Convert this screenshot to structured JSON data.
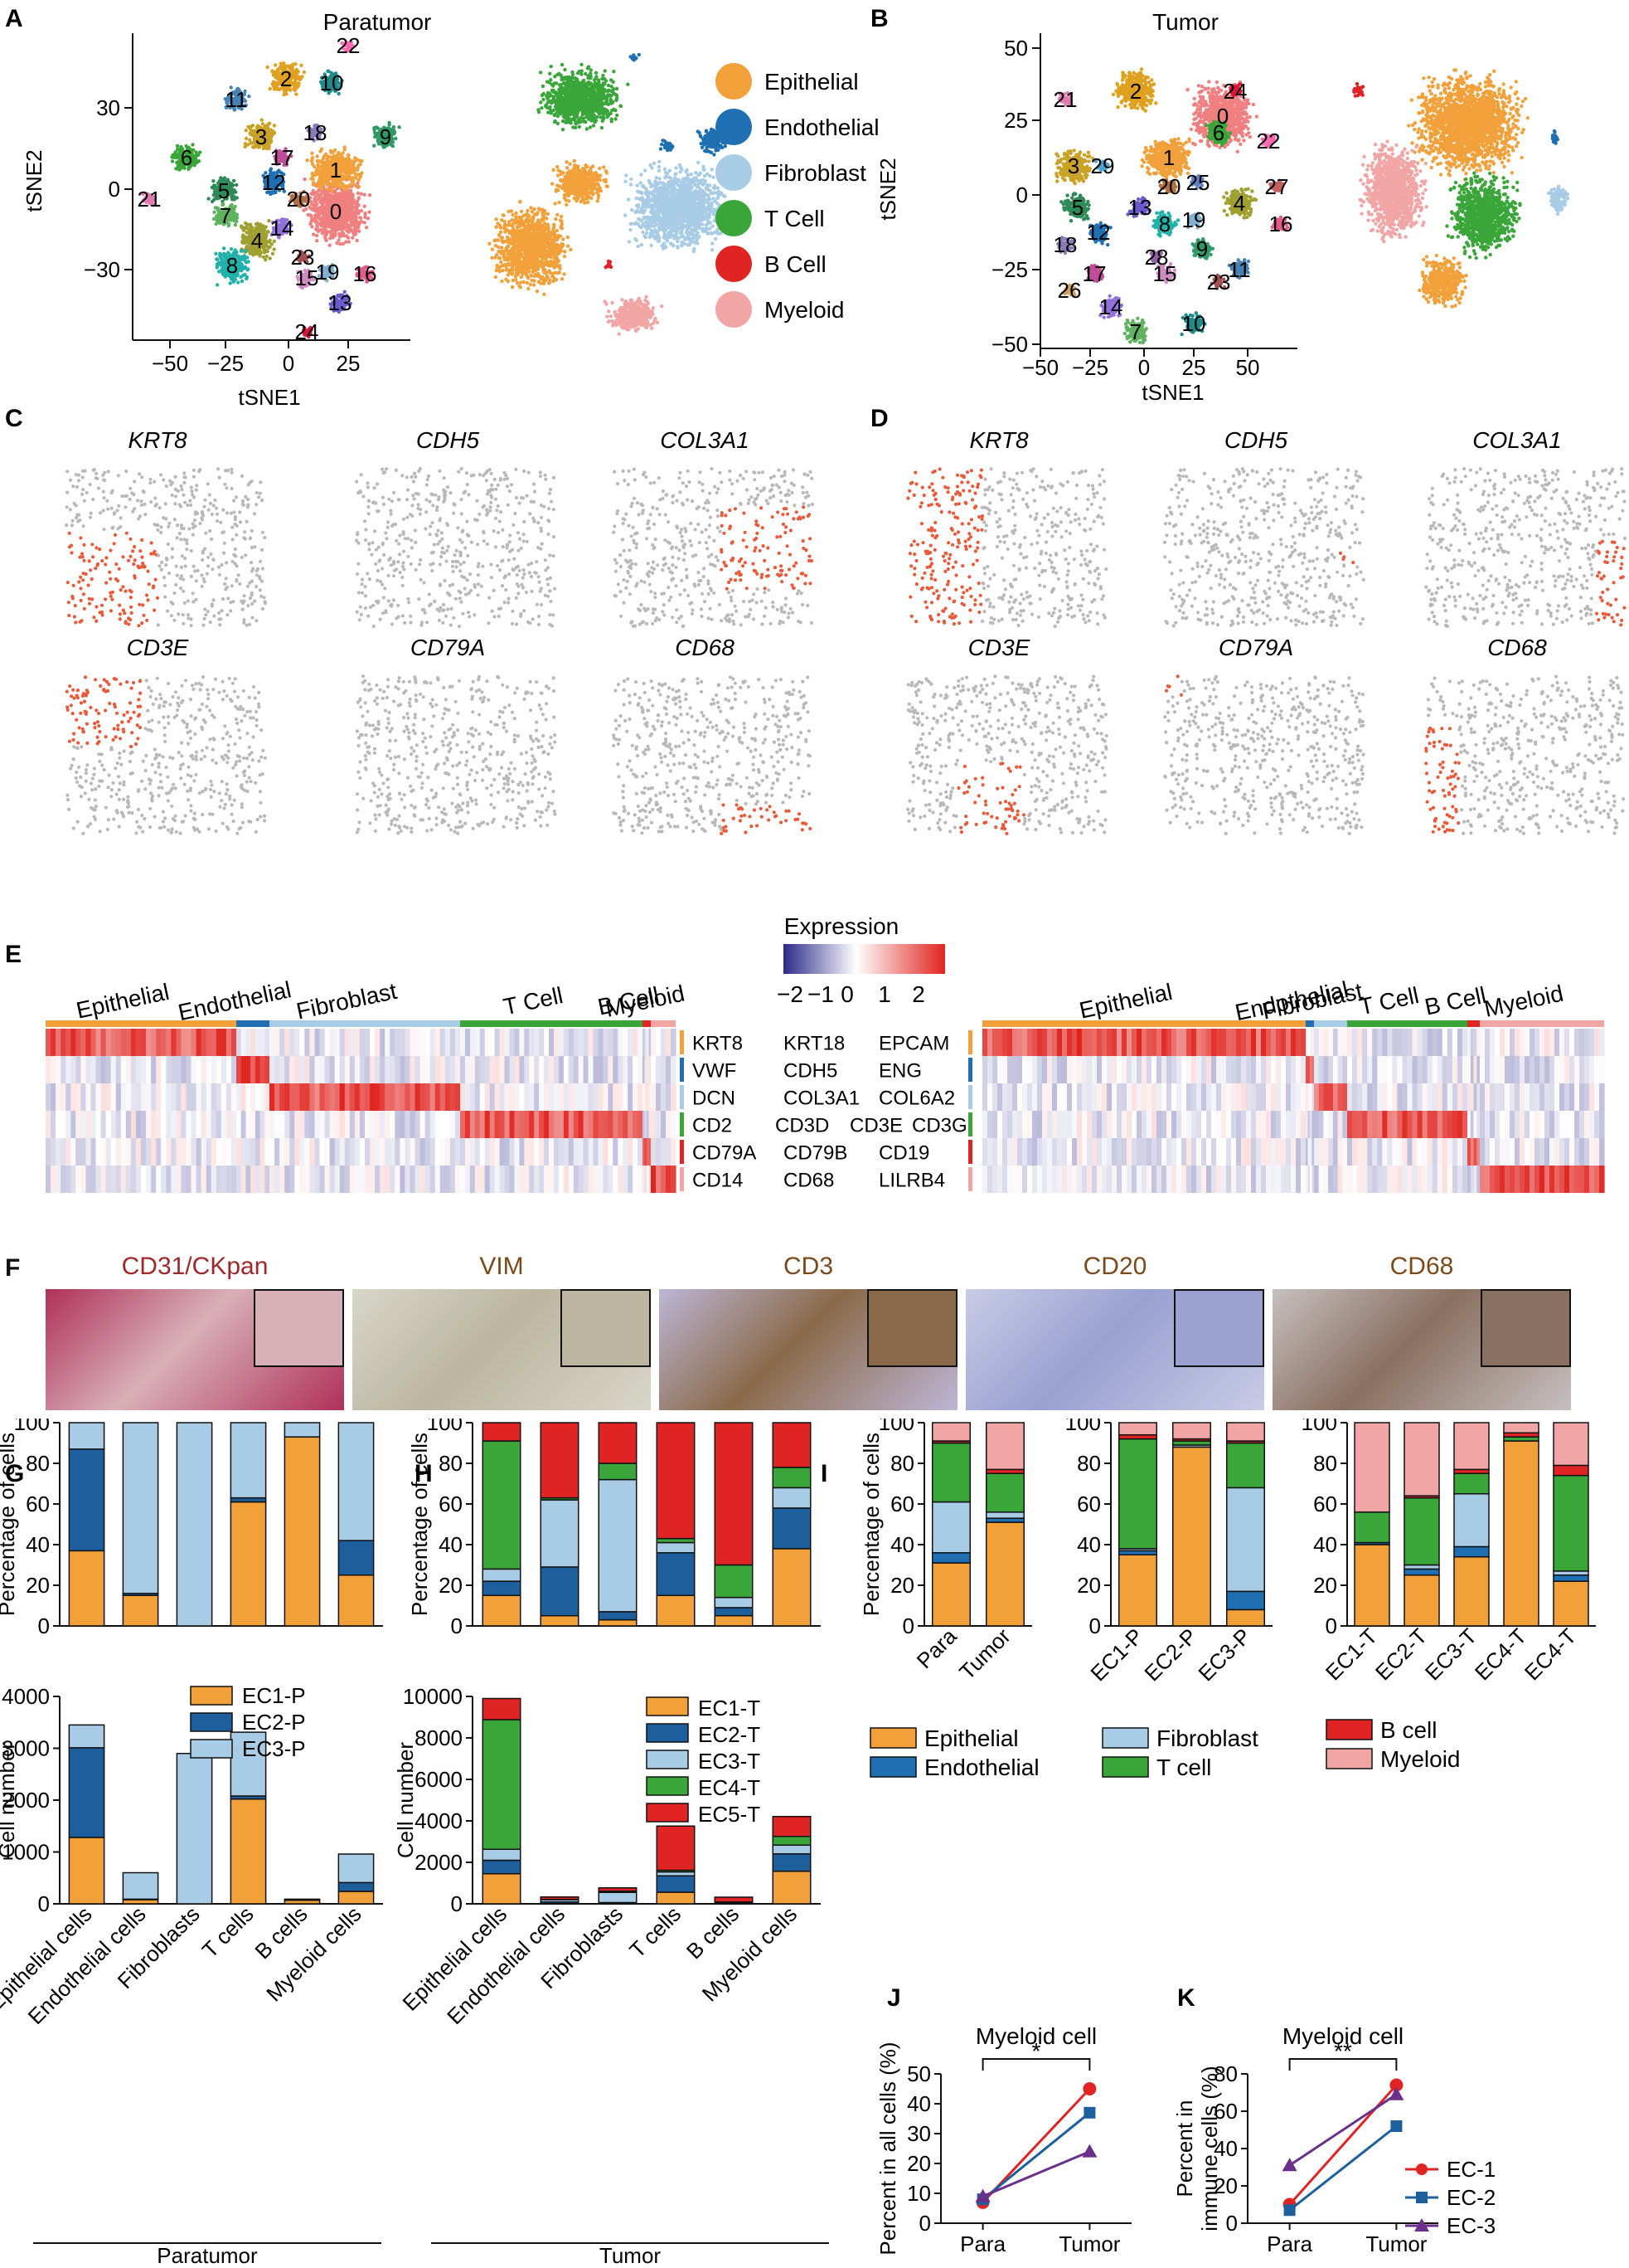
{
  "panels": {
    "A": {
      "letter": "A",
      "title": "Paratumor",
      "xlabel": "tSNE1",
      "ylabel": "tSNE2",
      "xticks": [
        "−50",
        "−25",
        "0",
        "25"
      ],
      "yticks": [
        "30",
        "0",
        "−30"
      ],
      "clusters": [
        "0",
        "1",
        "2",
        "3",
        "4",
        "5",
        "6",
        "7",
        "8",
        "9",
        "10",
        "11",
        "12",
        "13",
        "14",
        "15",
        "16",
        "17",
        "18",
        "19",
        "20",
        "21",
        "22",
        "23",
        "24"
      ]
    },
    "B": {
      "letter": "B",
      "title": "Tumor",
      "xlabel": "tSNE1",
      "ylabel": "tSNE2",
      "xticks": [
        "−50",
        "−25",
        "0",
        "25",
        "50"
      ],
      "yticks": [
        "50",
        "25",
        "0",
        "−25",
        "−50"
      ],
      "clusters": [
        "0",
        "1",
        "2",
        "3",
        "4",
        "5",
        "6",
        "7",
        "8",
        "9",
        "10",
        "11",
        "12",
        "13",
        "14",
        "15",
        "16",
        "17",
        "18",
        "19",
        "20",
        "21",
        "22",
        "23",
        "24",
        "25",
        "26",
        "27",
        "28",
        "29"
      ]
    },
    "C": {
      "letter": "C",
      "genes": [
        "KRT8",
        "CDH5",
        "COL3A1",
        "CD3E",
        "CD79A",
        "CD68"
      ]
    },
    "D": {
      "letter": "D",
      "genes": [
        "KRT8",
        "CDH5",
        "COL3A1",
        "CD3E",
        "CD79A",
        "CD68"
      ]
    },
    "E": {
      "letter": "E",
      "expression_label": "Expression",
      "scale_ticks": [
        "−2",
        "−1",
        "0",
        "1",
        "2"
      ],
      "groups": [
        "Epithelial",
        "Endothelial",
        "Fibroblast",
        "T Cell",
        "B Cell",
        "Myeloid"
      ],
      "marker_rows": [
        [
          "KRT8",
          "KRT18",
          "EPCAM"
        ],
        [
          "VWF",
          "CDH5",
          "ENG"
        ],
        [
          "DCN",
          "COL3A1",
          "COL6A2"
        ],
        [
          "CD2",
          "CD3D",
          "CD3E",
          "CD3G"
        ],
        [
          "CD79A",
          "CD79B",
          "CD19"
        ],
        [
          "CD14",
          "CD68",
          "LILRB4"
        ]
      ]
    },
    "F": {
      "letter": "F",
      "stains": [
        "CD31/CKpan",
        "VIM",
        "CD3",
        "CD20",
        "CD68"
      ]
    },
    "G": {
      "letter": "G",
      "group_label": "Paratumor"
    },
    "H": {
      "letter": "H",
      "group_label": "Tumor"
    },
    "I": {
      "letter": "I"
    },
    "J": {
      "letter": "J",
      "title": "Myeloid cell",
      "ylabel": "Percent in all cells (%)",
      "sig": "*"
    },
    "K": {
      "letter": "K",
      "title": "Myeloid cell",
      "ylabel_line1": "Percent in",
      "ylabel_line2": "immune cells (%)",
      "sig": "**"
    }
  },
  "celltype_legend": [
    "Epithelial",
    "Endothelial",
    "Fibroblast",
    "T Cell",
    "B Cell",
    "Myeloid"
  ],
  "colors": {
    "Epithelial": "#f2a03a",
    "Endothelial": "#1f6fb2",
    "Fibroblast": "#a9cce6",
    "T Cell": "#3aa63a",
    "B Cell": "#e02424",
    "Myeloid": "#f2a5a5",
    "EC1": "#f2a03a",
    "EC2": "#1d5f9c",
    "EC3": "#a9cce6",
    "EC4": "#3aa63a",
    "EC5": "#e02424"
  },
  "chart_data": [
    {
      "id": "G-top",
      "type": "bar",
      "stacked": true,
      "ylabel": "Percentage of cells",
      "ylim": [
        0,
        100
      ],
      "yticks": [
        0,
        20,
        40,
        60,
        80,
        100
      ],
      "categories": [
        "Epithelial cells",
        "Endothelial cells",
        "Fibroblasts",
        "T cells",
        "B cells",
        "Myeloid cells"
      ],
      "series": [
        {
          "name": "EC1-P",
          "values": [
            37,
            15,
            0,
            61,
            93,
            25
          ]
        },
        {
          "name": "EC2-P",
          "values": [
            50,
            1,
            0,
            2,
            0,
            17
          ]
        },
        {
          "name": "EC3-P",
          "values": [
            13,
            84,
            100,
            37,
            7,
            58
          ]
        }
      ]
    },
    {
      "id": "G-bottom",
      "type": "bar",
      "stacked": true,
      "ylabel": "Cell number",
      "ylim": [
        0,
        4000
      ],
      "yticks": [
        0,
        1000,
        2000,
        3000,
        4000
      ],
      "categories": [
        "Epithelial cells",
        "Endothelial cells",
        "Fibroblasts",
        "T cells",
        "B cells",
        "Myeloid cells"
      ],
      "series": [
        {
          "name": "EC1-P",
          "values": [
            1280,
            80,
            0,
            2020,
            70,
            240
          ]
        },
        {
          "name": "EC2-P",
          "values": [
            1730,
            10,
            0,
            60,
            0,
            170
          ]
        },
        {
          "name": "EC3-P",
          "values": [
            440,
            510,
            2900,
            1230,
            20,
            550
          ]
        }
      ]
    },
    {
      "id": "H-top",
      "type": "bar",
      "stacked": true,
      "ylabel": "Percentage of cells",
      "ylim": [
        0,
        100
      ],
      "yticks": [
        0,
        20,
        40,
        60,
        80,
        100
      ],
      "categories": [
        "Epithelial cells",
        "Endothelial cells",
        "Fibroblasts",
        "T cells",
        "B cells",
        "Myeloid cells"
      ],
      "series": [
        {
          "name": "EC1-T",
          "values": [
            15,
            5,
            3,
            15,
            5,
            38
          ]
        },
        {
          "name": "EC2-T",
          "values": [
            7,
            24,
            4,
            21,
            4,
            20
          ]
        },
        {
          "name": "EC3-T",
          "values": [
            6,
            33,
            65,
            5,
            5,
            10
          ]
        },
        {
          "name": "EC4-T",
          "values": [
            63,
            1,
            8,
            2,
            16,
            10
          ]
        },
        {
          "name": "EC5-T",
          "values": [
            9,
            37,
            20,
            57,
            70,
            22
          ]
        }
      ]
    },
    {
      "id": "H-bottom",
      "type": "bar",
      "stacked": true,
      "ylabel": "Cell number",
      "ylim": [
        0,
        10000
      ],
      "yticks": [
        0,
        2000,
        4000,
        6000,
        8000,
        10000
      ],
      "categories": [
        "Epithelial cells",
        "Endothelial cells",
        "Fibroblasts",
        "T cells",
        "B cells",
        "Myeloid cells"
      ],
      "series": [
        {
          "name": "EC1-T",
          "values": [
            1450,
            10,
            30,
            560,
            30,
            1570
          ]
        },
        {
          "name": "EC2-T",
          "values": [
            650,
            80,
            30,
            790,
            10,
            840
          ]
        },
        {
          "name": "EC3-T",
          "values": [
            530,
            110,
            490,
            190,
            10,
            420
          ]
        },
        {
          "name": "EC4-T",
          "values": [
            6250,
            10,
            60,
            80,
            40,
            420
          ]
        },
        {
          "name": "EC5-T",
          "values": [
            1020,
            120,
            160,
            2130,
            230,
            960
          ]
        }
      ]
    },
    {
      "id": "I-1",
      "type": "bar",
      "stacked": true,
      "ylabel": "Percentage of cells",
      "ylim": [
        0,
        100
      ],
      "yticks": [
        0,
        20,
        40,
        60,
        80,
        100
      ],
      "categories": [
        "Para",
        "Tumor"
      ],
      "series": [
        {
          "name": "Epithelial",
          "values": [
            31,
            51
          ]
        },
        {
          "name": "Endothelial",
          "values": [
            5,
            2
          ]
        },
        {
          "name": "Fibroblast",
          "values": [
            25,
            3
          ]
        },
        {
          "name": "T cell",
          "values": [
            29,
            19
          ]
        },
        {
          "name": "B cell",
          "values": [
            1,
            2
          ]
        },
        {
          "name": "Myeloid",
          "values": [
            9,
            23
          ]
        }
      ]
    },
    {
      "id": "I-2",
      "type": "bar",
      "stacked": true,
      "ylim": [
        0,
        100
      ],
      "yticks": [
        0,
        20,
        40,
        60,
        80,
        100
      ],
      "categories": [
        "EC1-P",
        "EC2-P",
        "EC3-P"
      ],
      "series": [
        {
          "name": "Epithelial",
          "values": [
            35,
            88,
            8
          ]
        },
        {
          "name": "Endothelial",
          "values": [
            2,
            0,
            9
          ]
        },
        {
          "name": "Fibroblast",
          "values": [
            1,
            1,
            51
          ]
        },
        {
          "name": "T cell",
          "values": [
            54,
            2,
            22
          ]
        },
        {
          "name": "B cell",
          "values": [
            2,
            1,
            1
          ]
        },
        {
          "name": "Myeloid",
          "values": [
            6,
            8,
            9
          ]
        }
      ]
    },
    {
      "id": "I-3",
      "type": "bar",
      "stacked": true,
      "ylim": [
        0,
        100
      ],
      "yticks": [
        0,
        20,
        40,
        60,
        80,
        100
      ],
      "categories": [
        "EC1-T",
        "EC2-T",
        "EC3-T",
        "EC4-T",
        "EC4-T"
      ],
      "series": [
        {
          "name": "Epithelial",
          "values": [
            40,
            25,
            34,
            91,
            22
          ]
        },
        {
          "name": "Endothelial",
          "values": [
            1,
            3,
            5,
            0,
            3
          ]
        },
        {
          "name": "Fibroblast",
          "values": [
            0,
            2,
            26,
            0,
            2
          ]
        },
        {
          "name": "T cell",
          "values": [
            15,
            33,
            10,
            2,
            47
          ]
        },
        {
          "name": "B cell",
          "values": [
            0,
            1,
            2,
            2,
            5
          ]
        },
        {
          "name": "Myeloid",
          "values": [
            44,
            36,
            23,
            5,
            21
          ]
        }
      ]
    },
    {
      "id": "J",
      "type": "line",
      "title": "Myeloid cell",
      "ylabel": "Percent in all cells (%)",
      "ylim": [
        0,
        50
      ],
      "yticks": [
        0,
        10,
        20,
        30,
        40,
        50
      ],
      "categories": [
        "Para",
        "Tumor"
      ],
      "series": [
        {
          "name": "EC-1",
          "values": [
            7,
            45
          ]
        },
        {
          "name": "EC-2",
          "values": [
            8,
            37
          ]
        },
        {
          "name": "EC-3",
          "values": [
            9,
            24
          ]
        }
      ]
    },
    {
      "id": "K",
      "type": "line",
      "title": "Myeloid cell",
      "ylabel": "Percent in immune cells (%)",
      "ylim": [
        0,
        80
      ],
      "yticks": [
        0,
        20,
        40,
        60,
        80
      ],
      "categories": [
        "Para",
        "Tumor"
      ],
      "series": [
        {
          "name": "EC-1",
          "values": [
            10,
            74
          ]
        },
        {
          "name": "EC-2",
          "values": [
            7,
            52
          ]
        },
        {
          "name": "EC-3",
          "values": [
            31,
            69
          ]
        }
      ]
    }
  ]
}
